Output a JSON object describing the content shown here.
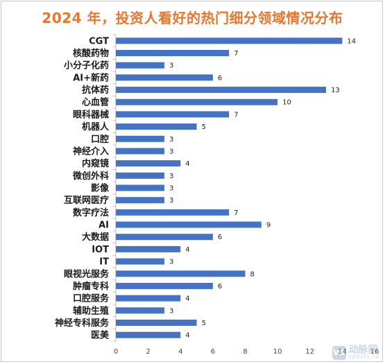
{
  "chart_data": {
    "type": "bar",
    "orientation": "horizontal",
    "title": "2024 年，投资人看好的热门细分领域情况分布",
    "categories": [
      "CGT",
      "核酸药物",
      "小分子化药",
      "AI+新药",
      "抗体药",
      "心血管",
      "眼科器械",
      "机器人",
      "口腔",
      "神经介入",
      "内窥镜",
      "微创外科",
      "影像",
      "互联网医疗",
      "数字疗法",
      "AI",
      "大数据",
      "IOT",
      "IT",
      "眼视光服务",
      "肿瘤专科",
      "口腔服务",
      "辅助生殖",
      "神经专科服务",
      "医美"
    ],
    "values": [
      14,
      7,
      3,
      6,
      13,
      10,
      7,
      5,
      3,
      3,
      4,
      3,
      3,
      3,
      7,
      9,
      6,
      4,
      3,
      8,
      6,
      4,
      3,
      5,
      4
    ],
    "xlim": [
      0,
      16
    ],
    "xticks": [
      0,
      2,
      4,
      6,
      8,
      10,
      12,
      14,
      16
    ],
    "bar_color": "#4472c4",
    "grid": false,
    "legend": "none"
  },
  "watermark": {
    "logo": "VB",
    "text_cn": "动脉网",
    "text_en": "VBDATA.CN"
  }
}
